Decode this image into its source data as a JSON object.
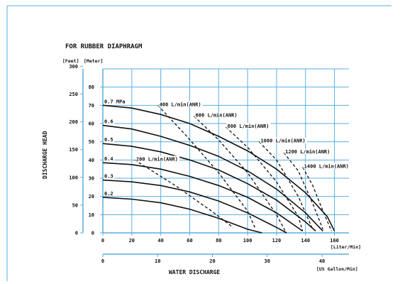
{
  "chart_data": {
    "type": "line",
    "title": "FOR RUBBER DIAPHRAGM",
    "xlabel": "WATER DISCHARGE",
    "ylabel": "DISCHARGE HEAD",
    "x_unit_primary": "[Liter/Min]",
    "x_unit_secondary": "[US Gallon/Min]",
    "y_unit_left": "[Feet]",
    "y_unit_right": "[Meter]",
    "xlim": [
      0,
      170
    ],
    "ylim": [
      0,
      90
    ],
    "grid": true,
    "x_ticks": [
      "0",
      "20",
      "40",
      "60",
      "80",
      "100",
      "120",
      "140",
      "160"
    ],
    "x_ticks_secondary": [
      "0",
      "10",
      "20",
      "30",
      "40"
    ],
    "y_ticks_meter": [
      "0",
      "10",
      "20",
      "30",
      "40",
      "50",
      "60",
      "70",
      "80"
    ],
    "y_ticks_feet": [
      "0",
      "50",
      "100",
      "150",
      "200",
      "250",
      "300"
    ],
    "pressure_series": [
      {
        "name": "0.7 MPa",
        "x": [
          0,
          20,
          40,
          60,
          80,
          100,
          120,
          140,
          155,
          160
        ],
        "y": [
          70,
          68.5,
          65,
          60,
          53,
          45,
          35,
          22,
          9,
          1
        ]
      },
      {
        "name": "0.6",
        "x": [
          0,
          20,
          40,
          60,
          80,
          100,
          120,
          140,
          152
        ],
        "y": [
          59,
          57,
          53,
          48,
          42,
          34,
          24,
          11,
          1
        ]
      },
      {
        "name": "0.5",
        "x": [
          0,
          20,
          40,
          60,
          80,
          100,
          120,
          140,
          147
        ],
        "y": [
          49,
          47.5,
          44.5,
          40,
          34.5,
          27,
          18,
          6,
          1
        ]
      },
      {
        "name": "0.4",
        "x": [
          0,
          20,
          40,
          60,
          80,
          100,
          120,
          138
        ],
        "y": [
          38.5,
          37.5,
          35,
          31,
          26,
          19.5,
          11,
          1
        ]
      },
      {
        "name": "0.3",
        "x": [
          0,
          20,
          40,
          60,
          80,
          100,
          120,
          127
        ],
        "y": [
          29,
          28,
          26,
          22.5,
          17.5,
          11,
          3,
          0
        ]
      },
      {
        "name": "0.2",
        "x": [
          0,
          20,
          40,
          60,
          80,
          100,
          110
        ],
        "y": [
          19.5,
          18.5,
          16.5,
          13,
          8,
          2,
          0
        ]
      }
    ],
    "air_consumption_series": [
      {
        "name": "200 L/min(ANR)",
        "x": [
          22,
          50,
          75,
          90
        ],
        "y": [
          40,
          26,
          12,
          3
        ]
      },
      {
        "name": "400 L/min(ANR)",
        "x": [
          38,
          58,
          80,
          100,
          105
        ],
        "y": [
          70,
          53,
          33,
          12,
          3
        ]
      },
      {
        "name": "600 L/min(ANR)",
        "x": [
          63,
          80,
          100,
          120,
          126
        ],
        "y": [
          64,
          51,
          33,
          10,
          1
        ]
      },
      {
        "name": "800 L/min(ANR)",
        "x": [
          85,
          100,
          120,
          135,
          138
        ],
        "y": [
          58,
          47,
          28,
          9,
          1
        ]
      },
      {
        "name": "1000 L/min(ANR)",
        "x": [
          108,
          120,
          135,
          145
        ],
        "y": [
          50,
          40,
          20,
          2
        ]
      },
      {
        "name": "1200 L/min(ANR)",
        "x": [
          125,
          135,
          145,
          152
        ],
        "y": [
          44,
          34,
          16,
          2
        ]
      },
      {
        "name": "1400 L/min(ANR)",
        "x": [
          138,
          145,
          152,
          158
        ],
        "y": [
          36,
          26,
          12,
          1
        ]
      }
    ],
    "pressure_labels": [
      "0.7 MPa",
      "0.6",
      "0.5",
      "0.4",
      "0.3",
      "0.2"
    ],
    "air_labels": [
      "400 L/min(ANR)",
      "600 L/min(ANR)",
      "800 L/min(ANR)",
      "1000 L/min(ANR)",
      "1200 L/min(ANR)",
      "1400 L/min(ANR)",
      "200 L/min(ANR)"
    ],
    "colors": {
      "frame": "#5aaee0",
      "grid": "#5aaee0",
      "pressure": "#111111",
      "air": "#111111"
    }
  }
}
